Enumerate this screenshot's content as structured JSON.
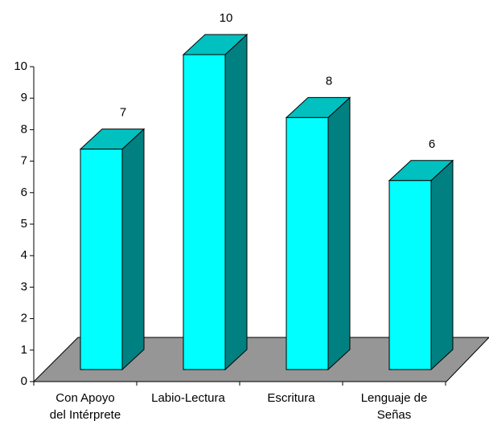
{
  "chart_data": {
    "type": "bar3d",
    "categories": [
      "Con Apoyo\ndel Intérprete",
      "Labio-Lectura",
      "Escritura",
      "Lenguaje de\nSeñas"
    ],
    "values": [
      7,
      10,
      8,
      6
    ],
    "color": "#00ffff",
    "ylim": [
      0,
      10
    ],
    "yticks": [
      0,
      1,
      2,
      3,
      4,
      5,
      6,
      7,
      8,
      9,
      10
    ]
  }
}
